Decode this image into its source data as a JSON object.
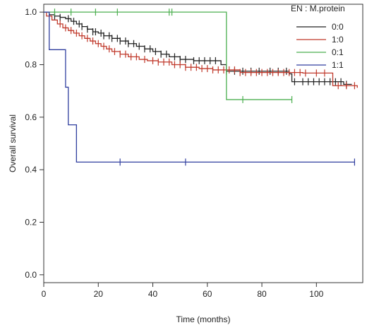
{
  "chart_data": {
    "type": "line",
    "xlabel": "Time (months)",
    "ylabel": "Overall survival",
    "xlim": [
      0,
      117
    ],
    "ylim": [
      -0.03,
      1.03
    ],
    "xticks": [
      0,
      20,
      40,
      60,
      80,
      100
    ],
    "yticks": [
      0.0,
      0.2,
      0.4,
      0.6,
      0.8,
      1.0
    ],
    "grid": false,
    "legend": {
      "title": "EN : M.protein",
      "placement": "top-right"
    },
    "series": [
      {
        "name": "0:0",
        "color": "#222222",
        "steps": [
          [
            0,
            1.0
          ],
          [
            2,
            0.99
          ],
          [
            4,
            0.985
          ],
          [
            6,
            0.98
          ],
          [
            8,
            0.975
          ],
          [
            10,
            0.965
          ],
          [
            12,
            0.955
          ],
          [
            14,
            0.945
          ],
          [
            16,
            0.935
          ],
          [
            18,
            0.925
          ],
          [
            20,
            0.92
          ],
          [
            22,
            0.91
          ],
          [
            25,
            0.9
          ],
          [
            28,
            0.89
          ],
          [
            31,
            0.88
          ],
          [
            34,
            0.87
          ],
          [
            37,
            0.86
          ],
          [
            40,
            0.85
          ],
          [
            43,
            0.84
          ],
          [
            46,
            0.83
          ],
          [
            50,
            0.82
          ],
          [
            55,
            0.815
          ],
          [
            65,
            0.8
          ],
          [
            67,
            0.775
          ],
          [
            90,
            0.765
          ],
          [
            91,
            0.735
          ],
          [
            107,
            0.735
          ],
          [
            110,
            0.725
          ],
          [
            113,
            0.725
          ]
        ],
        "censor": [
          4,
          6,
          9,
          11,
          13,
          14,
          16,
          18,
          19,
          21,
          22,
          24,
          25,
          27,
          28,
          30,
          31,
          33,
          35,
          37,
          39,
          41,
          43,
          45,
          48,
          50,
          52,
          55,
          57,
          59,
          61,
          63,
          67,
          70,
          73,
          76,
          79,
          83,
          86,
          89,
          92,
          95,
          97,
          99,
          101,
          103,
          105,
          107,
          109,
          111
        ]
      },
      {
        "name": "1:0",
        "color": "#c0392b",
        "steps": [
          [
            0,
            1.0
          ],
          [
            1,
            0.985
          ],
          [
            3,
            0.97
          ],
          [
            5,
            0.955
          ],
          [
            7,
            0.94
          ],
          [
            9,
            0.93
          ],
          [
            11,
            0.92
          ],
          [
            13,
            0.91
          ],
          [
            15,
            0.9
          ],
          [
            17,
            0.89
          ],
          [
            19,
            0.88
          ],
          [
            21,
            0.87
          ],
          [
            23,
            0.86
          ],
          [
            25,
            0.85
          ],
          [
            28,
            0.84
          ],
          [
            31,
            0.83
          ],
          [
            35,
            0.82
          ],
          [
            38,
            0.815
          ],
          [
            42,
            0.81
          ],
          [
            47,
            0.8
          ],
          [
            52,
            0.79
          ],
          [
            57,
            0.785
          ],
          [
            62,
            0.78
          ],
          [
            72,
            0.77
          ],
          [
            95,
            0.768
          ],
          [
            106,
            0.72
          ],
          [
            115,
            0.712
          ]
        ],
        "censor": [
          6,
          8,
          10,
          12,
          14,
          16,
          18,
          20,
          22,
          24,
          26,
          28,
          30,
          32,
          34,
          37,
          40,
          42,
          44,
          46,
          48,
          50,
          52,
          54,
          56,
          58,
          60,
          62,
          64,
          66,
          68,
          70,
          72,
          74,
          76,
          78,
          80,
          82,
          84,
          86,
          88,
          90,
          92,
          94,
          96,
          100,
          103,
          108,
          111,
          114
        ]
      },
      {
        "name": "0:1",
        "color": "#4caf50",
        "steps": [
          [
            0,
            1.0
          ],
          [
            67,
            1.0
          ],
          [
            67,
            0.667
          ],
          [
            91,
            0.667
          ]
        ],
        "censor": [
          4,
          10,
          19,
          27,
          46,
          47,
          73,
          91
        ]
      },
      {
        "name": "1:1",
        "color": "#303f9f",
        "steps": [
          [
            0,
            1.0
          ],
          [
            2,
            0.857
          ],
          [
            8,
            0.714
          ],
          [
            9,
            0.571
          ],
          [
            12,
            0.429
          ],
          [
            114,
            0.429
          ]
        ],
        "censor": [
          28,
          52,
          114
        ]
      }
    ]
  }
}
